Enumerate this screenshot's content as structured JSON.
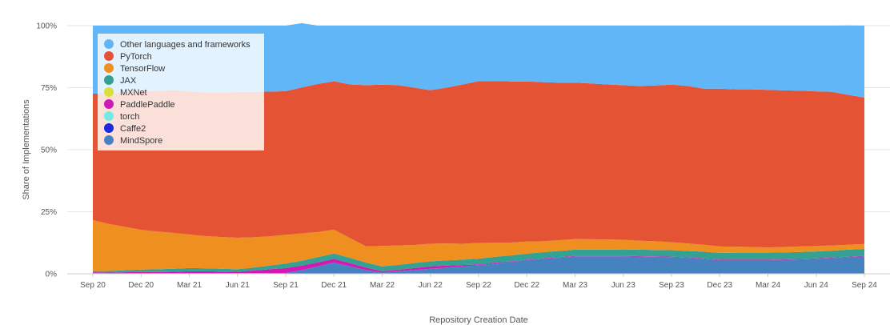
{
  "chart_data": {
    "type": "area",
    "stacked": true,
    "normalized": true,
    "title": "",
    "xlabel": "Repository Creation Date",
    "ylabel": "Share of Implementations",
    "ylim": [
      0,
      100
    ],
    "y_tick_labels": [
      "0%",
      "25%",
      "50%",
      "75%",
      "100%"
    ],
    "y_ticks": [
      0,
      25,
      50,
      75,
      100
    ],
    "categories": [
      "Sep 20",
      "Oct 20",
      "Nov 20",
      "Dec 20",
      "Jan 21",
      "Feb 21",
      "Mar 21",
      "Apr 21",
      "May 21",
      "Jun 21",
      "Jul 21",
      "Aug 21",
      "Sep 21",
      "Oct 21",
      "Nov 21",
      "Dec 21",
      "Jan 22",
      "Feb 22",
      "Mar 22",
      "Apr 22",
      "May 22",
      "Jun 22",
      "Jul 22",
      "Aug 22",
      "Sep 22",
      "Oct 22",
      "Nov 22",
      "Dec 22",
      "Jan 23",
      "Feb 23",
      "Mar 23",
      "Apr 23",
      "May 23",
      "Jun 23",
      "Jul 23",
      "Aug 23",
      "Sep 23",
      "Oct 23",
      "Nov 23",
      "Dec 23",
      "Jan 24",
      "Feb 24",
      "Mar 24",
      "Apr 24",
      "May 24",
      "Jun 24",
      "Jul 24",
      "Aug 24",
      "Sep 24"
    ],
    "x_tick_labels": [
      "Sep 20",
      "Dec 20",
      "Mar 21",
      "Jun 21",
      "Sep 21",
      "Dec 21",
      "Mar 22",
      "Jun 22",
      "Sep 22",
      "Dec 22",
      "Mar 23",
      "Jun 23",
      "Sep 23",
      "Dec 23",
      "Mar 24",
      "Jun 24",
      "Sep 24"
    ],
    "grid": true,
    "legend_position": "top-left",
    "series": [
      {
        "name": "MindSpore",
        "color": "#4682c0",
        "values": [
          0.3,
          0.2,
          0.2,
          0.2,
          0.2,
          0.2,
          0.2,
          0.3,
          0.3,
          0.3,
          0.3,
          0.3,
          0.3,
          1.5,
          3.0,
          4.5,
          3.0,
          1.5,
          0.5,
          1.0,
          1.5,
          2.0,
          2.5,
          3.0,
          3.5,
          4.2,
          4.8,
          5.5,
          6.0,
          6.5,
          7.0,
          7.0,
          7.0,
          7.0,
          6.9,
          6.8,
          6.7,
          6.4,
          6.0,
          5.5,
          5.5,
          5.5,
          5.5,
          5.6,
          5.8,
          6.0,
          6.3,
          6.7,
          7.0
        ]
      },
      {
        "name": "Caffe2",
        "color": "#1a2be0",
        "values": [
          0,
          0,
          0,
          0,
          0,
          0,
          0,
          0,
          0,
          0,
          0,
          0,
          0,
          0,
          0,
          0,
          0,
          0,
          0,
          0,
          0,
          0,
          0,
          0,
          0,
          0,
          0,
          0,
          0,
          0,
          0,
          0,
          0,
          0,
          0,
          0,
          0,
          0,
          0,
          0,
          0,
          0,
          0,
          0,
          0,
          0,
          0,
          0,
          0
        ]
      },
      {
        "name": "torch",
        "color": "#73ebe5",
        "values": [
          0,
          0,
          0,
          0,
          0,
          0,
          0,
          0,
          0,
          0,
          0,
          0,
          0,
          0,
          0,
          0,
          0,
          0,
          0,
          0,
          0,
          0,
          0,
          0,
          0,
          0,
          0,
          0,
          0,
          0,
          0,
          0,
          0,
          0,
          0,
          0,
          0,
          0,
          0,
          0,
          0,
          0,
          0,
          0,
          0,
          0,
          0,
          0,
          0
        ]
      },
      {
        "name": "PaddlePaddle",
        "color": "#d11ab4",
        "values": [
          0.3,
          0.3,
          0.4,
          0.5,
          0.5,
          0.6,
          0.8,
          0.7,
          0.6,
          0.5,
          1.0,
          1.5,
          2.0,
          1.8,
          1.6,
          1.5,
          1.3,
          1.0,
          0.5,
          0.6,
          0.8,
          1.0,
          0.8,
          0.5,
          0.3,
          0.3,
          0.2,
          0.2,
          0.2,
          0.2,
          0.2,
          0.2,
          0.2,
          0.2,
          0.2,
          0.2,
          0.2,
          0.2,
          0.2,
          0.2,
          0.2,
          0.2,
          0.2,
          0.2,
          0.2,
          0.2,
          0.2,
          0.2,
          0.2
        ]
      },
      {
        "name": "MXNet",
        "color": "#dde03a",
        "values": [
          0,
          0,
          0,
          0,
          0,
          0,
          0,
          0,
          0,
          0,
          0,
          0,
          0,
          0,
          0,
          0,
          0,
          0,
          0,
          0,
          0,
          0,
          0,
          0,
          0,
          0,
          0,
          0,
          0,
          0,
          0,
          0,
          0,
          0,
          0,
          0,
          0,
          0,
          0,
          0,
          0,
          0,
          0,
          0,
          0,
          0,
          0,
          0,
          0
        ]
      },
      {
        "name": "JAX",
        "color": "#35a192",
        "values": [
          0.5,
          0.6,
          0.8,
          1.0,
          1.1,
          1.2,
          1.3,
          1.2,
          1.1,
          1.0,
          1.2,
          1.5,
          1.8,
          2.0,
          2.1,
          2.2,
          2.1,
          2.0,
          2.0,
          2.0,
          2.0,
          2.0,
          2.1,
          2.2,
          2.3,
          2.3,
          2.4,
          2.4,
          2.5,
          2.5,
          2.5,
          2.5,
          2.5,
          2.6,
          2.6,
          2.6,
          2.6,
          2.6,
          2.7,
          2.7,
          2.8,
          2.8,
          2.8,
          2.8,
          2.8,
          2.8,
          2.8,
          2.8,
          2.8
        ]
      },
      {
        "name": "TensorFlow",
        "color": "#ef8f20",
        "values": [
          20.5,
          19.0,
          17.5,
          16.0,
          15.2,
          14.5,
          13.5,
          13.0,
          12.8,
          12.7,
          12.2,
          11.8,
          11.6,
          11.0,
          10.1,
          9.6,
          8.0,
          6.5,
          8.2,
          7.8,
          7.3,
          7.1,
          6.8,
          6.4,
          6.3,
          5.7,
          5.2,
          4.9,
          4.4,
          4.3,
          4.3,
          4.2,
          4.1,
          3.9,
          3.6,
          3.5,
          3.2,
          3.0,
          2.8,
          2.6,
          2.4,
          2.3,
          2.1,
          2.2,
          2.2,
          2.2,
          2.1,
          2.0,
          2.0
        ]
      },
      {
        "name": "PyTorch",
        "color": "#e55335",
        "values": [
          51.0,
          52.5,
          54.3,
          55.8,
          56.7,
          57.5,
          57.7,
          57.9,
          58.1,
          58.8,
          58.6,
          58.3,
          57.9,
          58.8,
          59.7,
          59.8,
          61.9,
          65.0,
          65.0,
          64.6,
          63.4,
          61.9,
          62.8,
          64.2,
          65.2,
          65.2,
          64.9,
          64.5,
          64.1,
          63.5,
          63.0,
          62.8,
          62.5,
          62.3,
          62.4,
          62.8,
          63.5,
          63.5,
          62.9,
          63.6,
          63.4,
          63.5,
          63.5,
          63.1,
          62.8,
          62.3,
          61.9,
          60.4,
          59.0
        ]
      },
      {
        "name": "Other languages and frameworks",
        "color": "#61b6f8",
        "values": [
          27.4,
          27.4,
          26.8,
          26.5,
          26.3,
          26.0,
          26.5,
          26.9,
          27.1,
          26.7,
          26.7,
          26.6,
          26.4,
          25.9,
          23.5,
          22.4,
          23.7,
          24.0,
          23.8,
          24.0,
          25.0,
          26.0,
          25.0,
          23.7,
          22.4,
          22.3,
          22.5,
          22.5,
          22.8,
          23.0,
          23.0,
          23.3,
          23.7,
          24.0,
          24.3,
          24.1,
          23.8,
          24.3,
          25.4,
          25.4,
          25.7,
          25.7,
          25.9,
          26.1,
          26.2,
          26.5,
          26.7,
          28.0,
          29.0
        ]
      }
    ],
    "legend": [
      {
        "label": "Other languages and frameworks",
        "color": "#61b6f8"
      },
      {
        "label": "PyTorch",
        "color": "#e55335"
      },
      {
        "label": "TensorFlow",
        "color": "#ef8f20"
      },
      {
        "label": "JAX",
        "color": "#35a192"
      },
      {
        "label": "MXNet",
        "color": "#dde03a"
      },
      {
        "label": "PaddlePaddle",
        "color": "#d11ab4"
      },
      {
        "label": "torch",
        "color": "#73ebe5"
      },
      {
        "label": "Caffe2",
        "color": "#1a2be0"
      },
      {
        "label": "MindSpore",
        "color": "#4682c0"
      }
    ]
  }
}
